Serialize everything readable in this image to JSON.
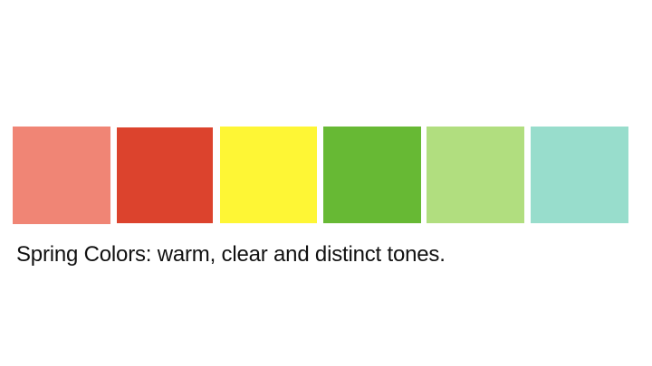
{
  "caption": "Spring Colors: warm, clear and distinct tones.",
  "swatches": [
    {
      "name": "salmon",
      "color": "#F08575"
    },
    {
      "name": "red",
      "color": "#DC432D"
    },
    {
      "name": "yellow",
      "color": "#FEF635"
    },
    {
      "name": "green",
      "color": "#67B934"
    },
    {
      "name": "light-green",
      "color": "#B1DE7F"
    },
    {
      "name": "aqua",
      "color": "#98DDCC"
    }
  ]
}
